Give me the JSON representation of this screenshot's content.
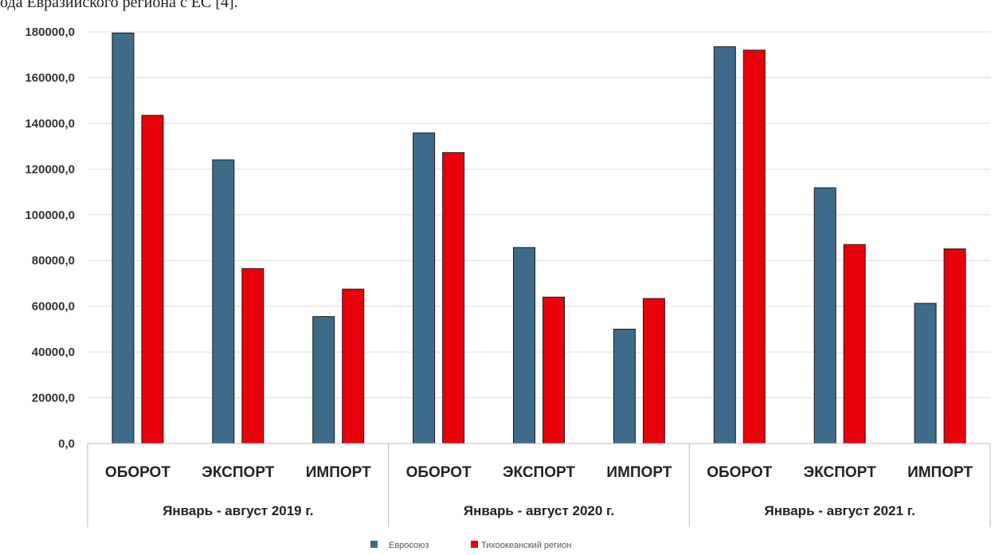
{
  "header": {
    "clipped_text": "ода Евразийского региона с ЕС [4]."
  },
  "colors": {
    "series_1": "#3e6b8a",
    "series_2": "#e8000b",
    "grid": "#dedede"
  },
  "chart_data": {
    "type": "bar",
    "title": "",
    "xlabel": "",
    "ylabel": "",
    "ylim": [
      0,
      180000
    ],
    "ytick_values": [
      0,
      20000,
      40000,
      60000,
      80000,
      100000,
      120000,
      140000,
      160000,
      180000
    ],
    "ytick_labels": [
      "0,0",
      "20000,0",
      "40000,0",
      "60000,0",
      "80000,0",
      "100000,0",
      "120000,0",
      "140000,0",
      "160000,0",
      "180000,0"
    ],
    "grid": true,
    "legend_position": "bottom",
    "groups": [
      {
        "label": "Январь - август 2019 г.",
        "categories": [
          "ОБОРОТ",
          "ЭКСПОРТ",
          "ИМПОРТ"
        ]
      },
      {
        "label": "Январь - август 2020 г.",
        "categories": [
          "ОБОРОТ",
          "ЭКСПОРТ",
          "ИМПОРТ"
        ]
      },
      {
        "label": "Январь - август 2021 г.",
        "categories": [
          "ОБОРОТ",
          "ЭКСПОРТ",
          "ИМПОРТ"
        ]
      }
    ],
    "categories": [
      "ОБОРОТ",
      "ЭКСПОРТ",
      "ИМПОРТ",
      "ОБОРОТ",
      "ЭКСПОРТ",
      "ИМПОРТ",
      "ОБОРОТ",
      "ЭКСПОРТ",
      "ИМПОРТ"
    ],
    "series": [
      {
        "name": "Евросоюз",
        "color": "#3e6b8a",
        "values": [
          179500,
          124000,
          55500,
          135800,
          85700,
          50000,
          173500,
          111800,
          61300
        ]
      },
      {
        "name": "Тихоокеанский регион",
        "color": "#e8000b",
        "values": [
          143500,
          76500,
          67500,
          127200,
          64000,
          63400,
          172000,
          87000,
          85100
        ]
      }
    ]
  }
}
